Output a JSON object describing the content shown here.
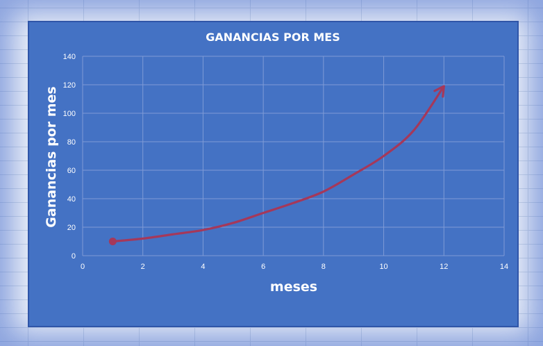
{
  "chart_data": {
    "type": "line",
    "title": "GANANCIAS POR MES",
    "xlabel": "meses",
    "ylabel": "Ganancias por mes",
    "xlim": [
      0,
      14
    ],
    "ylim": [
      0,
      140
    ],
    "xticks": [
      0,
      2,
      4,
      6,
      8,
      10,
      12,
      14
    ],
    "yticks": [
      0,
      20,
      40,
      60,
      80,
      100,
      120,
      140
    ],
    "grid": true,
    "legend": "none",
    "series": [
      {
        "x": [
          1,
          2,
          3,
          4,
          5,
          6,
          7,
          8,
          9,
          10,
          11,
          12
        ],
        "y": [
          10,
          12,
          15,
          18,
          23,
          30,
          37,
          45,
          57,
          70,
          88,
          119
        ],
        "start_marker": "circle",
        "end_marker": "arrow"
      }
    ]
  },
  "colors": {
    "plot_background": "#4472c4",
    "gridline": "#7f9bd6",
    "line": "#a5385a",
    "text": "#ffffff"
  }
}
